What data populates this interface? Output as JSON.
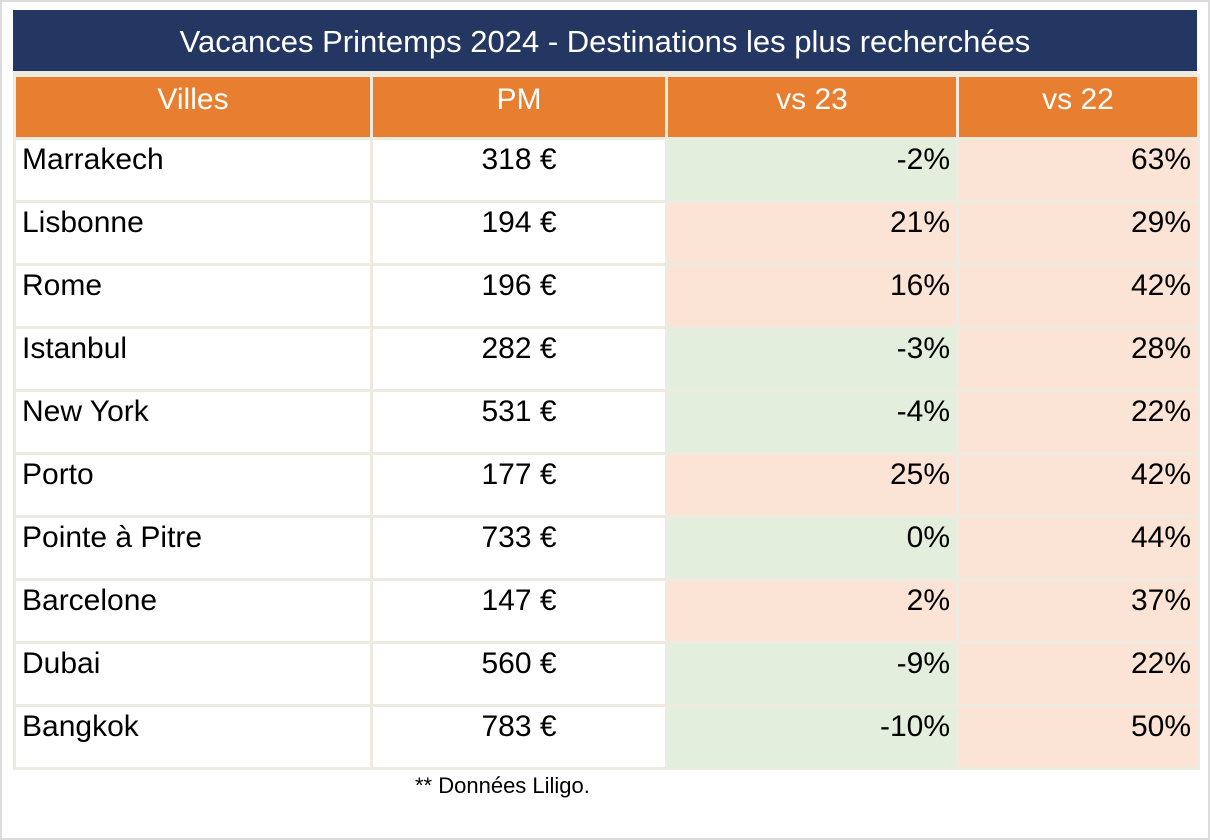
{
  "table": {
    "title": "Vacances Printemps 2024 - Destinations les plus recherchées",
    "columns": [
      "Villes",
      "PM",
      "vs 23",
      "vs 22"
    ],
    "rows": [
      {
        "city": "Marrakech",
        "pm": "318 €",
        "vs23": "-2%",
        "vs23_tone": "green",
        "vs22": "63%",
        "vs22_tone": "red"
      },
      {
        "city": "Lisbonne",
        "pm": "194 €",
        "vs23": "21%",
        "vs23_tone": "red",
        "vs22": "29%",
        "vs22_tone": "red"
      },
      {
        "city": "Rome",
        "pm": "196 €",
        "vs23": "16%",
        "vs23_tone": "red",
        "vs22": "42%",
        "vs22_tone": "red"
      },
      {
        "city": "Istanbul",
        "pm": "282 €",
        "vs23": "-3%",
        "vs23_tone": "green",
        "vs22": "28%",
        "vs22_tone": "red"
      },
      {
        "city": "New York",
        "pm": "531 €",
        "vs23": "-4%",
        "vs23_tone": "green",
        "vs22": "22%",
        "vs22_tone": "red"
      },
      {
        "city": "Porto",
        "pm": "177 €",
        "vs23": "25%",
        "vs23_tone": "red",
        "vs22": "42%",
        "vs22_tone": "red"
      },
      {
        "city": "Pointe à Pitre",
        "pm": "733 €",
        "vs23": "0%",
        "vs23_tone": "green",
        "vs22": "44%",
        "vs22_tone": "red"
      },
      {
        "city": "Barcelone",
        "pm": "147 €",
        "vs23": "2%",
        "vs23_tone": "red",
        "vs22": "37%",
        "vs22_tone": "red"
      },
      {
        "city": "Dubai",
        "pm": "560 €",
        "vs23": "-9%",
        "vs23_tone": "green",
        "vs22": "22%",
        "vs22_tone": "red"
      },
      {
        "city": "Bangkok",
        "pm": "783 €",
        "vs23": "-10%",
        "vs23_tone": "green",
        "vs22": "50%",
        "vs22_tone": "red"
      }
    ],
    "footnote": "** Données Liligo.",
    "colors": {
      "navy": "#243763",
      "orange": "#E87E2F",
      "green": "#E3EEDC",
      "pink": "#FBE3D6",
      "line": "#EDEBDF",
      "pageborder": "#DCDCDC"
    }
  },
  "chart_data": {
    "type": "table",
    "title": "Vacances Printemps 2024 - Destinations les plus recherchées",
    "columns": [
      "Villes",
      "PM",
      "vs 23",
      "vs 22"
    ],
    "cities": [
      "Marrakech",
      "Lisbonne",
      "Rome",
      "Istanbul",
      "New York",
      "Porto",
      "Pointe à Pitre",
      "Barcelone",
      "Dubai",
      "Bangkok"
    ],
    "pm_eur": [
      318,
      194,
      196,
      282,
      531,
      177,
      733,
      147,
      560,
      783
    ],
    "vs23_pct": [
      -2,
      21,
      16,
      -3,
      -4,
      25,
      0,
      2,
      -9,
      -10
    ],
    "vs22_pct": [
      63,
      29,
      42,
      28,
      22,
      42,
      44,
      37,
      22,
      50
    ],
    "cell_color_rule": "vs cells: green background when change <= 0%, light pink/orange background when change > 0%",
    "source_note": "** Données Liligo."
  }
}
